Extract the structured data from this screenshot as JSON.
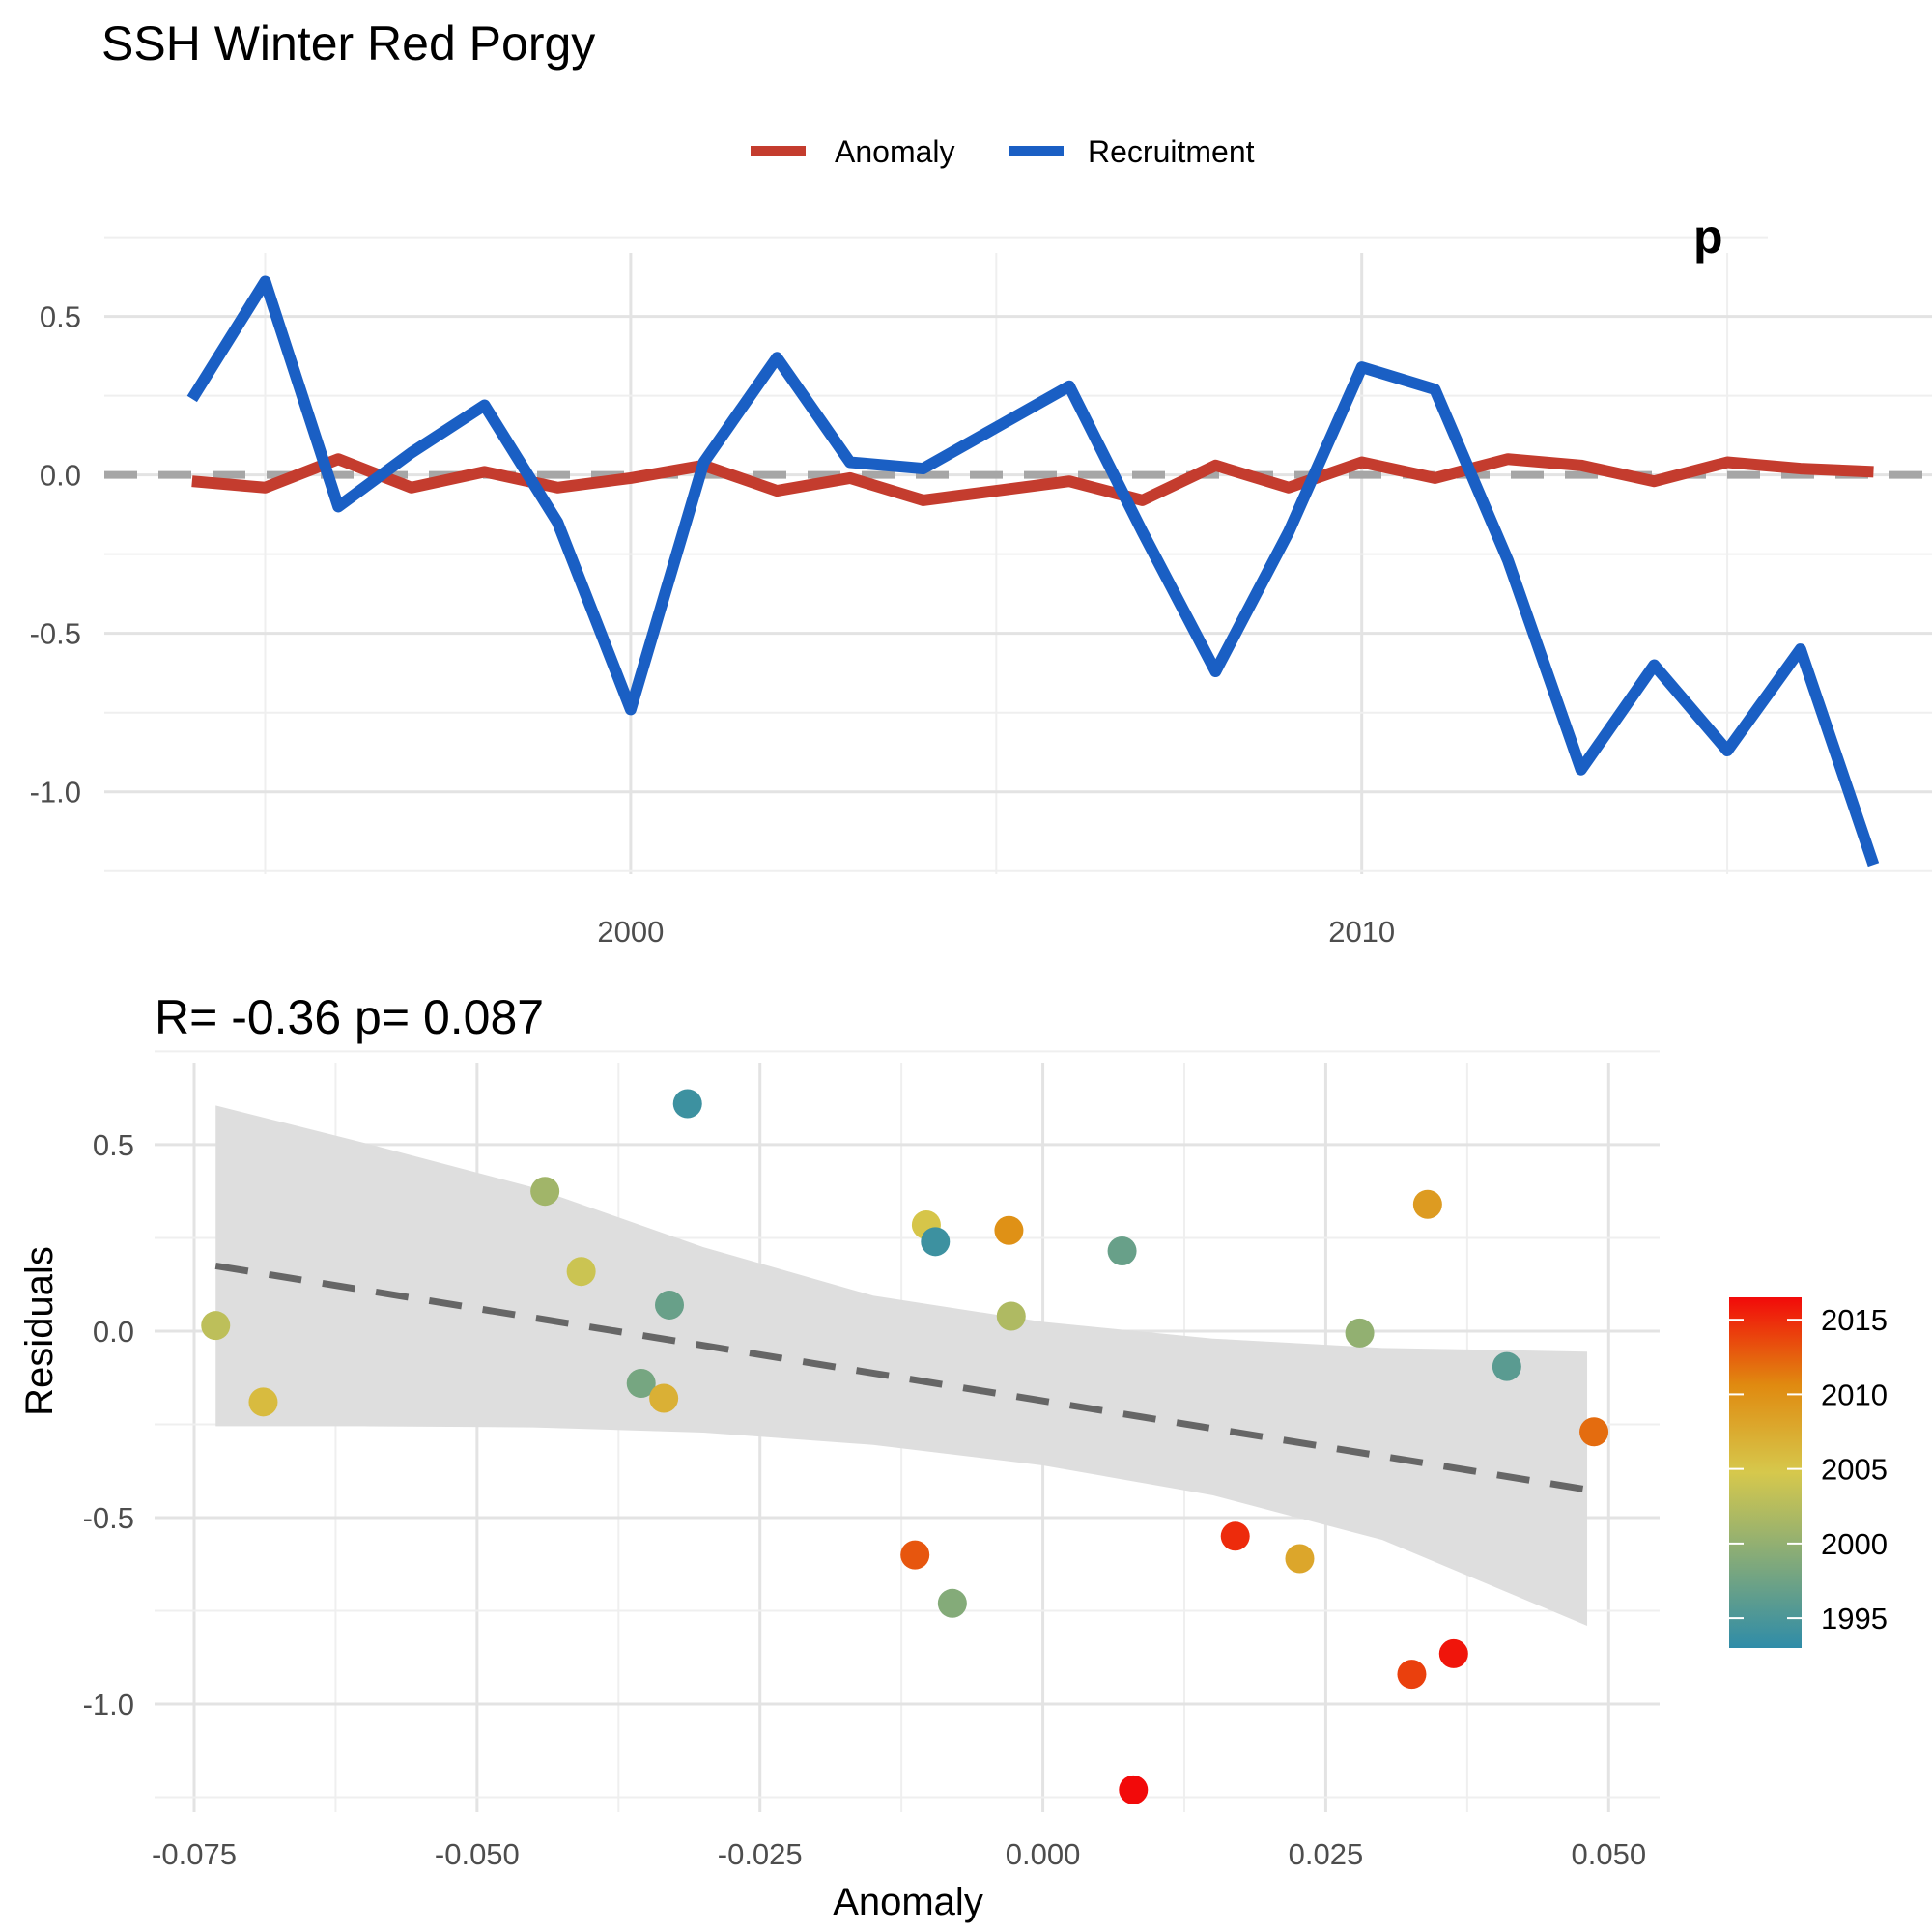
{
  "colors": {
    "anomaly": "#c43c2e",
    "recruitment": "#1a5fc4",
    "zero_line": "#a6a6a6",
    "regression": "#666666",
    "ribbon": "#dedede",
    "colorbar_low": "#2f8ca8",
    "colorbar_mid": "#d6c84c",
    "colorbar_high": "#f20a0a"
  },
  "chart_data": [
    {
      "type": "line",
      "title": "SSH Winter  Red Porgy",
      "corner_annotation": "p",
      "xlabel": "",
      "ylabel": "",
      "xlim": [
        1992.8,
        2017.8
      ],
      "ylim": [
        -1.26,
        0.7
      ],
      "xticks": [
        2000,
        2010
      ],
      "xtick_labels": [
        "2000",
        "2010"
      ],
      "yticks": [
        0.5,
        0.0,
        -0.5,
        -1.0
      ],
      "ytick_labels": [
        "0.5",
        "0.0",
        "-0.5",
        "-1.0"
      ],
      "grid": true,
      "legend_position": "top",
      "reference_line": {
        "y": 0,
        "style": "dashed"
      },
      "x": [
        1994,
        1995,
        1996,
        1997,
        1998,
        1999,
        2000,
        2001,
        2002,
        2003,
        2004,
        2005,
        2006,
        2007,
        2008,
        2009,
        2010,
        2011,
        2012,
        2013,
        2014,
        2015,
        2016,
        2017
      ],
      "series": [
        {
          "name": "Anomaly",
          "color_key": "anomaly",
          "values": [
            -0.02,
            -0.04,
            0.05,
            -0.04,
            0.01,
            -0.04,
            -0.01,
            0.03,
            -0.05,
            -0.01,
            -0.08,
            -0.05,
            -0.02,
            -0.08,
            0.03,
            -0.04,
            0.04,
            -0.01,
            0.05,
            0.03,
            -0.02,
            0.04,
            0.02,
            0.01
          ]
        },
        {
          "name": "Recruitment",
          "color_key": "recruitment",
          "values": [
            0.24,
            0.61,
            -0.1,
            0.07,
            0.22,
            -0.15,
            -0.74,
            0.04,
            0.37,
            0.04,
            0.02,
            0.15,
            0.28,
            -0.18,
            -0.62,
            -0.18,
            0.34,
            0.27,
            -0.27,
            -0.93,
            -0.6,
            -0.87,
            -0.55,
            -1.23
          ]
        }
      ]
    },
    {
      "type": "scatter",
      "title": "R= -0.36  p= 0.087",
      "xlabel": "Anomaly",
      "ylabel": "Residuals",
      "xlim": [
        -0.0785,
        0.0545
      ],
      "ylim": [
        -1.29,
        0.72
      ],
      "xticks": [
        -0.075,
        -0.05,
        -0.025,
        0.0,
        0.025,
        0.05
      ],
      "xtick_labels": [
        "-0.075",
        "-0.050",
        "-0.025",
        "0.000",
        "0.025",
        "0.050"
      ],
      "yticks": [
        0.5,
        0.0,
        -0.5,
        -1.0
      ],
      "ytick_labels": [
        "0.5",
        "0.0",
        "-0.5",
        "-1.0"
      ],
      "grid": true,
      "regression": {
        "x": [
          -0.0731,
          0.0481
        ],
        "y": [
          0.175,
          -0.425
        ],
        "style": "dashed"
      },
      "confidence_band": {
        "x": [
          -0.0731,
          -0.06,
          -0.045,
          -0.03,
          -0.015,
          0.0,
          0.015,
          0.03,
          0.0481
        ],
        "upper": [
          0.605,
          0.505,
          0.385,
          0.225,
          0.095,
          0.025,
          -0.02,
          -0.045,
          -0.055
        ],
        "lower": [
          -0.255,
          -0.255,
          -0.258,
          -0.272,
          -0.305,
          -0.36,
          -0.44,
          -0.56,
          -0.79
        ]
      },
      "points": [
        {
          "x": -0.0731,
          "y": 0.015,
          "year": 2003
        },
        {
          "x": -0.0689,
          "y": -0.19,
          "year": 2006
        },
        {
          "x": -0.044,
          "y": 0.375,
          "year": 2001
        },
        {
          "x": -0.0408,
          "y": 0.16,
          "year": 2004
        },
        {
          "x": -0.0355,
          "y": -0.14,
          "year": 1998
        },
        {
          "x": -0.033,
          "y": 0.07,
          "year": 1997
        },
        {
          "x": -0.0335,
          "y": -0.18,
          "year": 2007
        },
        {
          "x": -0.0314,
          "y": 0.61,
          "year": 1994
        },
        {
          "x": -0.0113,
          "y": -0.6,
          "year": 2013
        },
        {
          "x": -0.0103,
          "y": 0.285,
          "year": 2005
        },
        {
          "x": -0.0095,
          "y": 0.24,
          "year": 1994
        },
        {
          "x": -0.008,
          "y": -0.73,
          "year": 1999
        },
        {
          "x": -0.003,
          "y": 0.27,
          "year": 2010
        },
        {
          "x": -0.0028,
          "y": 0.04,
          "year": 2002
        },
        {
          "x": 0.007,
          "y": 0.215,
          "year": 1997
        },
        {
          "x": 0.008,
          "y": -1.23,
          "year": 2017
        },
        {
          "x": 0.017,
          "y": -0.55,
          "year": 2015
        },
        {
          "x": 0.0227,
          "y": -0.61,
          "year": 2008
        },
        {
          "x": 0.028,
          "y": -0.005,
          "year": 2000
        },
        {
          "x": 0.0326,
          "y": -0.92,
          "year": 2014
        },
        {
          "x": 0.034,
          "y": 0.34,
          "year": 2009
        },
        {
          "x": 0.0363,
          "y": -0.865,
          "year": 2016
        },
        {
          "x": 0.041,
          "y": -0.095,
          "year": 1996
        },
        {
          "x": 0.0487,
          "y": -0.27,
          "year": 2012
        }
      ],
      "colorbar": {
        "min": 1993,
        "max": 2016.5,
        "ticks": [
          2015,
          2010,
          2005,
          2000,
          1995
        ],
        "tick_labels": [
          "2015",
          "2010",
          "2005",
          "2000",
          "1995"
        ]
      }
    }
  ]
}
